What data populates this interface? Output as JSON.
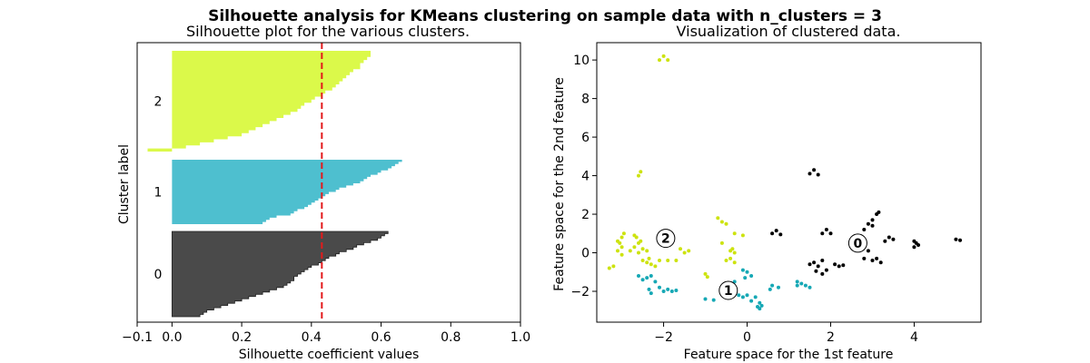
{
  "title": "Silhouette analysis for KMeans clustering on sample data with n_clusters = 3",
  "chart_data": [
    {
      "type": "area",
      "title": "Silhouette plot for the various clusters.",
      "xlabel": "Silhouette coefficient values",
      "ylabel": "Cluster label",
      "xlim": [
        -0.1,
        1.0
      ],
      "xticks": [
        "−0.1",
        "0.0",
        "0.2",
        "0.4",
        "0.6",
        "0.8",
        "1.0"
      ],
      "xtick_values": [
        -0.1,
        0.0,
        0.2,
        0.4,
        0.6,
        0.8,
        1.0
      ],
      "average_silhouette": 0.43,
      "clusters": [
        {
          "label": "0",
          "color": "#4a4a4a",
          "values": [
            0.62,
            0.61,
            0.6,
            0.59,
            0.57,
            0.55,
            0.53,
            0.52,
            0.5,
            0.48,
            0.47,
            0.45,
            0.44,
            0.43,
            0.42,
            0.4,
            0.39,
            0.38,
            0.37,
            0.36,
            0.35,
            0.35,
            0.34,
            0.33,
            0.32,
            0.3,
            0.28,
            0.26,
            0.24,
            0.22,
            0.2,
            0.18,
            0.16,
            0.14,
            0.12,
            0.1,
            0.09,
            0.08
          ]
        },
        {
          "label": "1",
          "color": "#4ebfcf",
          "values": [
            0.66,
            0.65,
            0.64,
            0.63,
            0.62,
            0.6,
            0.59,
            0.57,
            0.56,
            0.55,
            0.54,
            0.52,
            0.5,
            0.48,
            0.47,
            0.45,
            0.44,
            0.43,
            0.42,
            0.41,
            0.4,
            0.39,
            0.38,
            0.36,
            0.35,
            0.34,
            0.3,
            0.28,
            0.27,
            0.26
          ]
        },
        {
          "label": "2",
          "color": "#dbf94a",
          "values": [
            0.57,
            0.57,
            0.56,
            0.55,
            0.54,
            0.54,
            0.52,
            0.51,
            0.5,
            0.49,
            0.48,
            0.47,
            0.46,
            0.44,
            0.43,
            0.41,
            0.4,
            0.38,
            0.37,
            0.36,
            0.34,
            0.32,
            0.3,
            0.28,
            0.26,
            0.24,
            0.22,
            0.2,
            0.16,
            0.12,
            0.08,
            0.04,
            -0.07
          ]
        }
      ]
    },
    {
      "type": "scatter",
      "title": "Visualization of clustered data.",
      "xlabel": "Feature space for the 1st feature",
      "ylabel": "Feature space for the 2nd feature",
      "xlim": [
        -3.6,
        5.6
      ],
      "ylim": [
        -3.6,
        10.9
      ],
      "xticks": [
        "−2",
        "0",
        "2",
        "4"
      ],
      "xtick_values": [
        -2,
        0,
        2,
        4
      ],
      "yticks": [
        "−2",
        "0",
        "2",
        "4",
        "6",
        "8",
        "10"
      ],
      "ytick_values": [
        -2,
        0,
        2,
        4,
        6,
        8,
        10
      ],
      "series": [
        {
          "cluster": "0",
          "color": "#000000",
          "points": [
            [
              1.5,
              4.1
            ],
            [
              1.6,
              4.3
            ],
            [
              1.7,
              4.05
            ],
            [
              0.6,
              1.0
            ],
            [
              0.7,
              1.15
            ],
            [
              0.8,
              0.95
            ],
            [
              1.8,
              1.0
            ],
            [
              1.9,
              1.2
            ],
            [
              2.0,
              1.0
            ],
            [
              2.9,
              1.5
            ],
            [
              3.0,
              1.7
            ],
            [
              3.1,
              2.0
            ],
            [
              3.15,
              2.1
            ],
            [
              3.0,
              1.4
            ],
            [
              2.8,
              1.2
            ],
            [
              3.4,
              0.8
            ],
            [
              3.3,
              0.6
            ],
            [
              3.5,
              0.7
            ],
            [
              4.0,
              0.3
            ],
            [
              4.05,
              0.5
            ],
            [
              4.1,
              0.4
            ],
            [
              4.0,
              0.6
            ],
            [
              5.0,
              0.7
            ],
            [
              5.1,
              0.65
            ],
            [
              2.8,
              -0.3
            ],
            [
              3.0,
              -0.4
            ],
            [
              3.1,
              -0.3
            ],
            [
              3.2,
              -0.5
            ],
            [
              2.9,
              0.1
            ],
            [
              1.5,
              -0.6
            ],
            [
              1.6,
              -0.5
            ],
            [
              1.7,
              -0.7
            ],
            [
              1.8,
              -0.4
            ],
            [
              1.65,
              -0.95
            ],
            [
              1.8,
              -1.1
            ],
            [
              1.9,
              -0.9
            ],
            [
              2.1,
              -0.6
            ],
            [
              2.2,
              -0.7
            ],
            [
              2.3,
              -0.65
            ]
          ]
        },
        {
          "cluster": "1",
          "color": "#16a8b5",
          "points": [
            [
              -2.6,
              -1.2
            ],
            [
              -2.5,
              -1.4
            ],
            [
              -2.4,
              -1.3
            ],
            [
              -2.3,
              -1.2
            ],
            [
              -2.2,
              -1.5
            ],
            [
              -2.35,
              -1.9
            ],
            [
              -2.3,
              -2.1
            ],
            [
              -2.1,
              -1.8
            ],
            [
              -2.0,
              -2.0
            ],
            [
              -1.9,
              -1.9
            ],
            [
              -1.8,
              -2.0
            ],
            [
              -1.7,
              -1.95
            ],
            [
              -1.0,
              -2.4
            ],
            [
              -0.8,
              -2.45
            ],
            [
              -0.4,
              -1.6
            ],
            [
              -0.3,
              -1.5
            ],
            [
              -0.1,
              -0.9
            ],
            [
              0.0,
              -1.0
            ],
            [
              -0.05,
              -1.3
            ],
            [
              0.1,
              -1.2
            ],
            [
              -0.2,
              -2.2
            ],
            [
              -0.1,
              -2.3
            ],
            [
              0.0,
              -2.2
            ],
            [
              0.1,
              -2.5
            ],
            [
              0.2,
              -2.3
            ],
            [
              0.3,
              -2.6
            ],
            [
              0.25,
              -2.8
            ],
            [
              0.3,
              -2.9
            ],
            [
              0.35,
              -2.75
            ],
            [
              0.6,
              -1.7
            ],
            [
              0.55,
              -1.9
            ],
            [
              0.75,
              -1.8
            ],
            [
              1.2,
              -1.5
            ],
            [
              1.3,
              -1.6
            ],
            [
              1.4,
              -1.7
            ],
            [
              1.5,
              -1.8
            ],
            [
              1.2,
              -1.7
            ]
          ]
        },
        {
          "cluster": "2",
          "color": "#cde30f",
          "points": [
            [
              -2.1,
              10.0
            ],
            [
              -2.0,
              10.2
            ],
            [
              -1.9,
              10.0
            ],
            [
              -2.6,
              4.0
            ],
            [
              -2.55,
              4.2
            ],
            [
              -3.3,
              -0.8
            ],
            [
              -3.2,
              -0.7
            ],
            [
              -3.0,
              0.3
            ],
            [
              -3.05,
              0.5
            ],
            [
              -3.1,
              0.6
            ],
            [
              -3.0,
              0.8
            ],
            [
              -2.95,
              1.0
            ],
            [
              -3.1,
              0.1
            ],
            [
              -3.0,
              -0.1
            ],
            [
              -2.8,
              0.1
            ],
            [
              -2.7,
              0.3
            ],
            [
              -2.6,
              0.5
            ],
            [
              -2.65,
              0.8
            ],
            [
              -2.55,
              0.6
            ],
            [
              -2.7,
              0.9
            ],
            [
              -2.6,
              0.0
            ],
            [
              -2.5,
              0.2
            ],
            [
              -2.4,
              0.1
            ],
            [
              -2.5,
              -0.4
            ],
            [
              -2.4,
              -0.5
            ],
            [
              -2.35,
              -0.3
            ],
            [
              -2.3,
              -0.6
            ],
            [
              -2.2,
              -0.7
            ],
            [
              -2.1,
              -0.4
            ],
            [
              -1.9,
              -0.4
            ],
            [
              -1.7,
              -0.4
            ],
            [
              -1.6,
              0.2
            ],
            [
              -1.5,
              0.0
            ],
            [
              -1.4,
              0.1
            ],
            [
              -1.0,
              -1.1
            ],
            [
              -0.95,
              -1.25
            ],
            [
              -0.7,
              1.8
            ],
            [
              -0.6,
              1.6
            ],
            [
              -0.5,
              1.5
            ],
            [
              -0.4,
              0.1
            ],
            [
              -0.35,
              0.2
            ],
            [
              -0.3,
              0.0
            ],
            [
              -0.4,
              -0.3
            ],
            [
              -0.5,
              -0.4
            ],
            [
              -0.3,
              -0.5
            ],
            [
              -0.3,
              1.0
            ],
            [
              -0.1,
              0.9
            ],
            [
              -0.6,
              0.5
            ]
          ]
        }
      ],
      "centers": [
        {
          "label": "0",
          "x": 2.65,
          "y": 0.5
        },
        {
          "label": "1",
          "x": -0.45,
          "y": -1.95
        },
        {
          "label": "2",
          "x": -1.95,
          "y": 0.75
        }
      ]
    }
  ]
}
